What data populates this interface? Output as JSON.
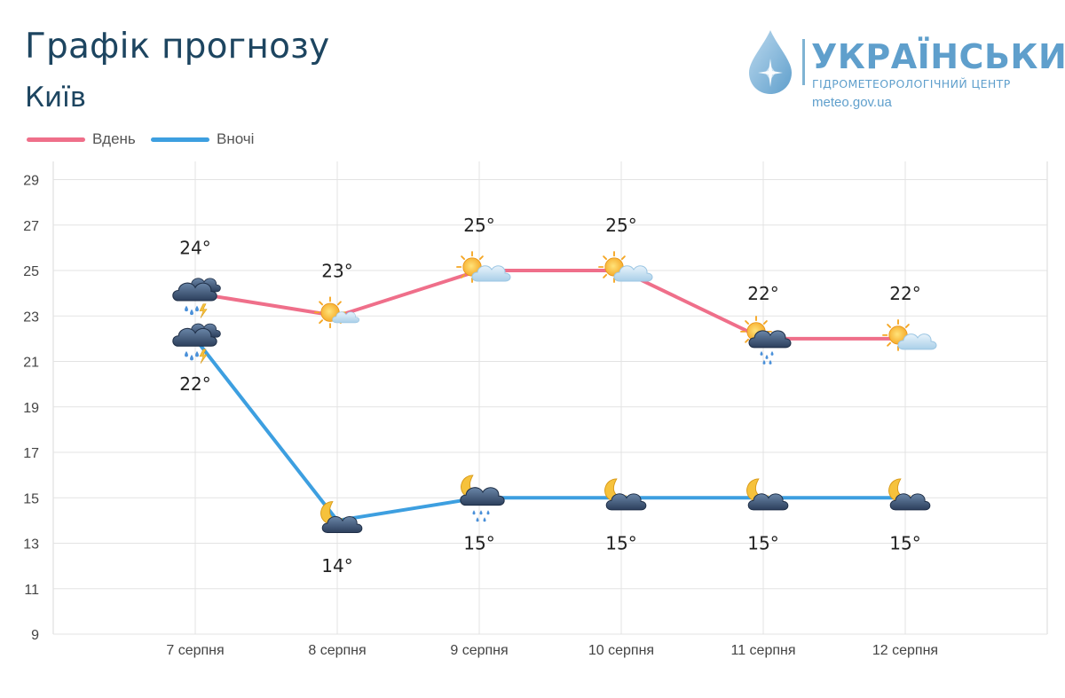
{
  "header": {
    "title": "Графік прогнозу",
    "subtitle": "Київ"
  },
  "logo": {
    "name": "УКРАЇНСЬКИЙ",
    "sub": "ГІДРОМЕТЕОРОЛОГІЧНИЙ ЦЕНТР",
    "url": "meteo.gov.ua"
  },
  "chart_data": {
    "type": "line",
    "title": "Графік прогнозу",
    "subtitle": "Київ",
    "xlabel": "",
    "ylabel": "",
    "categories": [
      "7 серпня",
      "8 серпня",
      "9 серпня",
      "10 серпня",
      "11 серпня",
      "12 серпня"
    ],
    "ylim": [
      9,
      29.8
    ],
    "yticks": [
      9,
      11,
      13,
      15,
      17,
      19,
      21,
      23,
      25,
      27,
      29
    ],
    "grid": true,
    "legend_position": "top-left",
    "series": [
      {
        "name": "Вдень",
        "color": "#ef6f8a",
        "values": [
          24,
          23,
          25,
          25,
          22,
          22
        ],
        "labels": [
          "24°",
          "23°",
          "25°",
          "25°",
          "22°",
          "22°"
        ],
        "icons": [
          "thunderstorm-rain-icon",
          "sun-cloud-icon",
          "sun-cloud-icon",
          "sun-cloud-icon",
          "sun-cloud-rain-icon",
          "sun-cloud-icon"
        ]
      },
      {
        "name": "Вночі",
        "color": "#3d9fe0",
        "values": [
          22,
          14,
          15,
          15,
          15,
          15
        ],
        "labels": [
          "22°",
          "14°",
          "15°",
          "15°",
          "15°",
          "15°"
        ],
        "icons": [
          "thunderstorm-rain-icon",
          "moon-cloud-icon",
          "moon-cloud-rain-icon",
          "moon-cloud-icon",
          "moon-cloud-icon",
          "moon-cloud-icon"
        ]
      }
    ]
  }
}
